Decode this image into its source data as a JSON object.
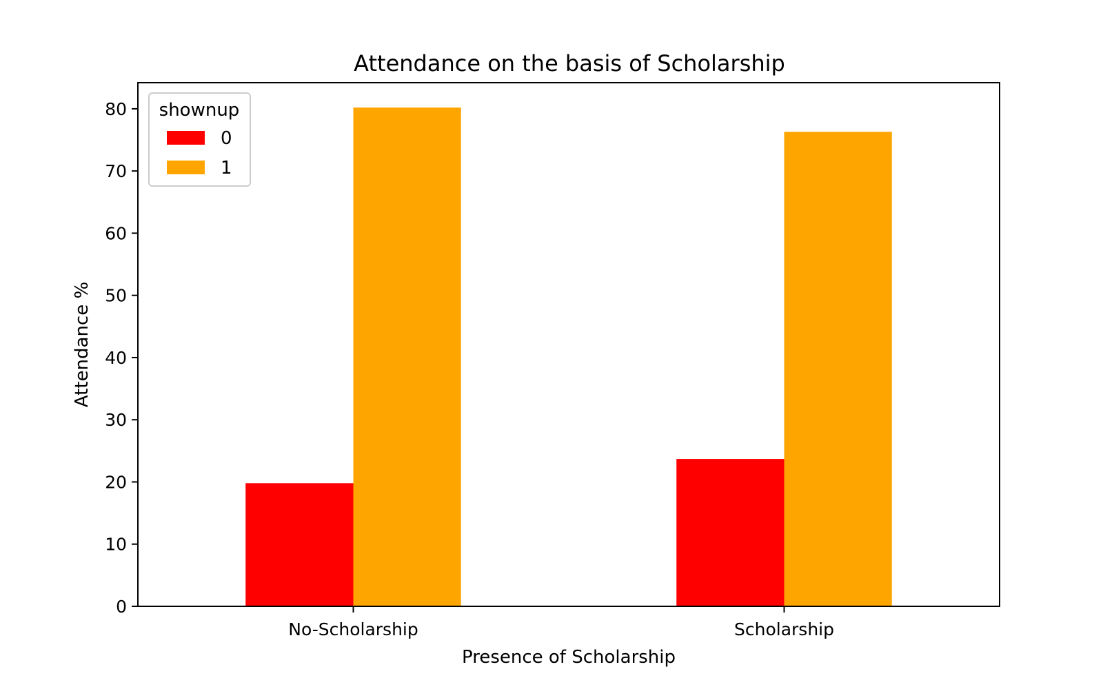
{
  "chart_data": {
    "type": "bar",
    "title": "Attendance on the basis of Scholarship",
    "xlabel": "Presence of Scholarship",
    "ylabel": "Attendance %",
    "categories": [
      "No-Scholarship",
      "Scholarship"
    ],
    "series": [
      {
        "name": "0",
        "color": "#ff0000",
        "values": [
          19.8,
          23.7
        ]
      },
      {
        "name": "1",
        "color": "#ffa500",
        "values": [
          80.2,
          76.3
        ]
      }
    ],
    "ylim": [
      0,
      84.2
    ],
    "yticks": [
      0,
      10,
      20,
      30,
      40,
      50,
      60,
      70,
      80
    ],
    "grid": false,
    "legend": {
      "title": "shownup",
      "placement": "top-left"
    }
  }
}
